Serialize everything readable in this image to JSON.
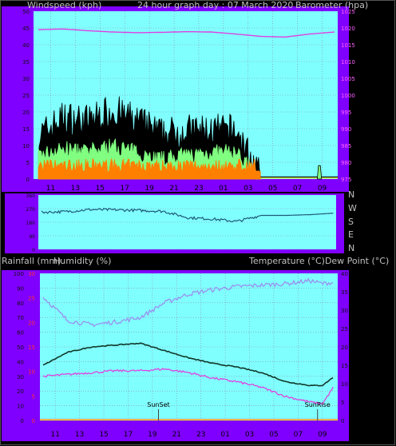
{
  "header": {
    "left_label": "Windspeed (kph)",
    "center_label": "24 hour graph day : 07 March 2020",
    "right_label": "Barometer (hpa)"
  },
  "middle_header": {
    "left_label": "Rainfall (mm)",
    "center_label": "Humidity (%)",
    "right_label": "Temperature (°C)Dew Point (°C)"
  },
  "sun": {
    "set_label": "SunSet",
    "rise_label": "SunRise"
  },
  "x_ticks": [
    "11",
    "13",
    "15",
    "17",
    "19",
    "21",
    "23",
    "01",
    "03",
    "05",
    "07",
    "09"
  ],
  "colors": {
    "frame": "#8000ff",
    "plot_bg": "#80ffff",
    "wind_max": "#000000",
    "wind_avg": "#80ff80",
    "wind_gust_low": "#ff8000",
    "barometer": "#e040e0",
    "direction": "#1e5a78",
    "humidity": "#9a90f0",
    "temperature": "#103828",
    "dewpoint": "#e040e0",
    "grid": "#8888aa"
  },
  "chart_data": [
    {
      "type": "line",
      "title": "24 hour graph day : 07 March 2020",
      "ylabel": "Windspeed (kph)",
      "ylabel_right": "Barometer (hpa)",
      "ylim": [
        0,
        50
      ],
      "ylim_right": [
        975,
        1025
      ],
      "y_ticks": [
        0,
        5,
        10,
        15,
        20,
        25,
        30,
        35,
        40,
        45,
        50
      ],
      "y_ticks_right": [
        975,
        980,
        985,
        990,
        995,
        1000,
        1005,
        1010,
        1015,
        1020,
        1025
      ],
      "x": [
        0,
        2,
        4,
        6,
        8,
        10,
        12,
        14,
        16,
        18,
        20,
        22,
        24
      ],
      "series": [
        {
          "name": "Windspeed",
          "values": [
            12,
            18,
            17,
            20,
            17,
            13,
            14,
            14,
            14,
            0,
            0,
            0,
            0
          ]
        },
        {
          "name": "Windspeed average",
          "values": [
            7,
            9,
            8,
            10,
            8,
            6,
            7,
            8,
            8,
            0,
            0,
            0,
            0
          ]
        },
        {
          "name": "Barometer",
          "values": [
            1019.5,
            1019.7,
            1019.2,
            1018.8,
            1018.6,
            1018.7,
            1018.9,
            1018.8,
            1018.2,
            1017.5,
            1017.3,
            1018.2,
            1018.8
          ]
        }
      ]
    },
    {
      "type": "line",
      "ylabel_right": "N W S E N",
      "right_labels": [
        "N",
        "W",
        "S",
        "E",
        "N"
      ],
      "ylim": [
        0,
        360
      ],
      "y_ticks": [
        0,
        90,
        180,
        270,
        360
      ],
      "x": [
        0,
        2,
        4,
        6,
        8,
        10,
        12,
        14,
        16,
        18,
        20,
        22,
        24
      ],
      "series": [
        {
          "name": "Wind direction",
          "values": [
            246,
            250,
            264,
            262,
            258,
            252,
            210,
            201,
            185,
            225,
            225,
            230,
            240
          ]
        }
      ]
    },
    {
      "type": "line",
      "xlabel": "",
      "ylabel": "Humidity (%)",
      "ylabel_rain": "Rainfall (mm)",
      "ylabel_right": "Temperature (°C)Dew Point (°C)",
      "ylim": [
        0,
        100
      ],
      "ylim_rain": [
        0,
        30
      ],
      "ylim_right": [
        0,
        40
      ],
      "y_ticks": [
        0,
        10,
        20,
        30,
        40,
        50,
        60,
        70,
        80,
        90,
        100
      ],
      "y_ticks_rain": [
        0,
        5,
        10,
        15,
        20,
        25,
        30
      ],
      "y_ticks_right": [
        0,
        5,
        10,
        15,
        20,
        25,
        30,
        35,
        40
      ],
      "x": [
        0,
        2,
        4,
        6,
        8,
        10,
        12,
        14,
        16,
        18,
        20,
        22,
        23,
        24
      ],
      "series": [
        {
          "name": "Humidity",
          "values": [
            84,
            68,
            65,
            67,
            70,
            80,
            86,
            89,
            91,
            92,
            93,
            95,
            93,
            94
          ]
        },
        {
          "name": "Temperature",
          "values": [
            15,
            18.5,
            20,
            20.5,
            21,
            19,
            17,
            15.5,
            14.5,
            13,
            10.5,
            9.5,
            9.5,
            12
          ]
        },
        {
          "name": "Dew Point",
          "values": [
            12,
            12.5,
            13,
            13.5,
            13.5,
            14,
            13,
            11.5,
            10.5,
            9,
            6.5,
            5,
            4.5,
            9.5
          ]
        },
        {
          "name": "Rainfall",
          "values": [
            0,
            0,
            0,
            0,
            0,
            0,
            0,
            0,
            0,
            0,
            0,
            0,
            0,
            0
          ]
        }
      ]
    }
  ]
}
